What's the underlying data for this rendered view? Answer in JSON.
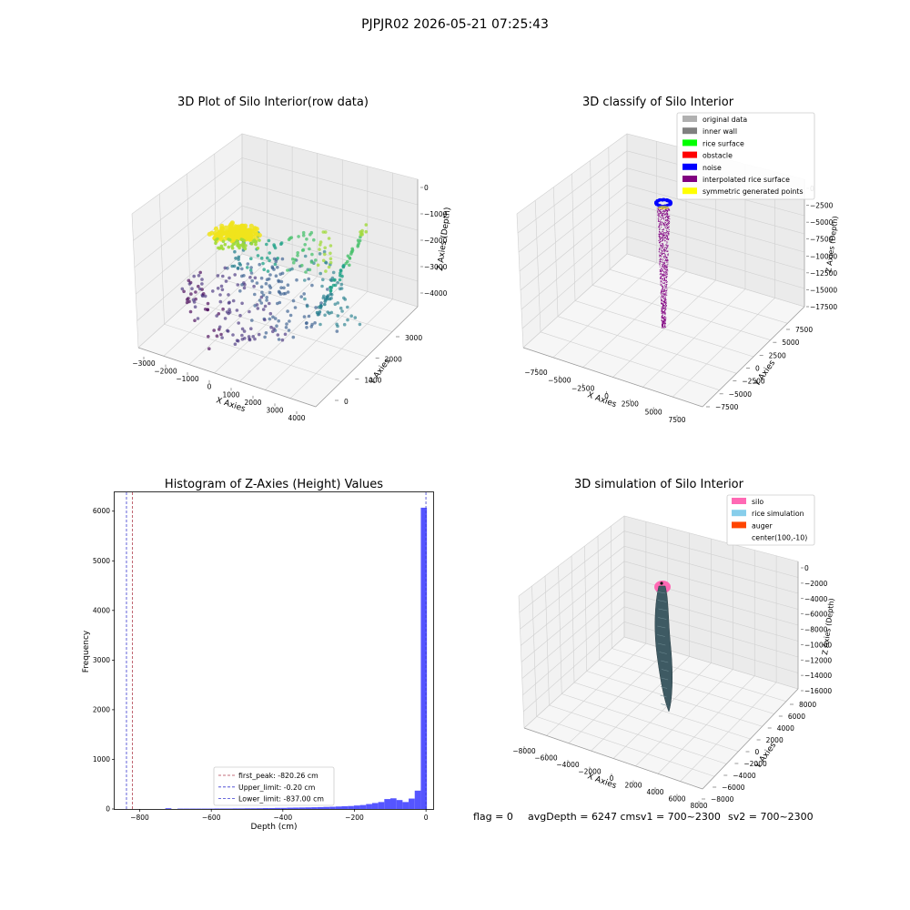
{
  "suptitle": "PJPJR02 2026-05-21 07:25:43",
  "footer": {
    "flag": "flag = 0",
    "avg": "avgDepth = 6247 cmsv1 = 700~2300",
    "sv2": "sv2 = 700~2300"
  },
  "colors": {
    "hist_bar": "#5555ff",
    "first_peak": "#b04050",
    "upper_limit": "#3b3bd0",
    "lower_limit": "#3b3bd0",
    "legend_original": "#b0b0b0",
    "legend_inner_wall": "#808080",
    "legend_rice_surface": "#00ff00",
    "legend_obstacle": "#ff0000",
    "legend_noise": "#0000ff",
    "legend_interp": "#800080",
    "legend_symmetric": "#ffff00",
    "legend_silo": "#ff69b4",
    "legend_rice_sim": "#87ceeb",
    "legend_auger": "#ff4500",
    "rice_sim_body": "#3e5a63"
  },
  "chart_data": [
    {
      "type": "scatter",
      "title": "3D Plot of Silo Interior(row data)",
      "xlabel": "X Axies",
      "ylabel": "Y Axies",
      "zlabel": "Z Axies (Depth)",
      "xticks": [
        "−3000",
        "−2000",
        "−1000",
        "0",
        "1000",
        "2000",
        "3000",
        "4000"
      ],
      "yticks": [
        "0",
        "1000",
        "2000",
        "3000"
      ],
      "zticks": [
        "0",
        "−1000",
        "−2000",
        "−3000",
        "−4000"
      ],
      "grid": true,
      "colormap": "viridis"
    },
    {
      "type": "scatter",
      "title": "3D classify of Silo Interior",
      "xlabel": "X Axies",
      "ylabel": "Y Axies",
      "zlabel": "Z Axies (Depth)",
      "xticks": [
        "−7500",
        "−5000",
        "−2500",
        "0",
        "2500",
        "5000",
        "7500"
      ],
      "yticks": [
        "−7500",
        "−5000",
        "−2500",
        "0",
        "2500",
        "5000",
        "7500"
      ],
      "zticks": [
        "0",
        "−2500",
        "−5000",
        "−7500",
        "−10000",
        "−12500",
        "−15000",
        "−17500"
      ],
      "legend": [
        "original data",
        "inner wall",
        "rice surface",
        "obstacle",
        "noise",
        "interpolated rice surface",
        "symmetric generated points"
      ],
      "legend_position": "top-right",
      "grid": true
    },
    {
      "type": "bar",
      "title": "Histogram of Z-Axies (Height) Values",
      "xlabel": "Depth (cm)",
      "ylabel": "Frequency",
      "xlim": [
        -870,
        20
      ],
      "ylim": [
        0,
        6380
      ],
      "xticks": [
        "−800",
        "−600",
        "−400",
        "−200",
        "0"
      ],
      "yticks": [
        "0",
        "1000",
        "2000",
        "3000",
        "4000",
        "5000",
        "6000"
      ],
      "bin_width": 17,
      "bins": [
        {
          "x": -720,
          "v": 15
        },
        {
          "x": -703,
          "v": 0
        },
        {
          "x": -686,
          "v": 8
        },
        {
          "x": -669,
          "v": 8
        },
        {
          "x": -652,
          "v": 8
        },
        {
          "x": -635,
          "v": 8
        },
        {
          "x": -618,
          "v": 8
        },
        {
          "x": -601,
          "v": 8
        },
        {
          "x": -584,
          "v": 10
        },
        {
          "x": -567,
          "v": 10
        },
        {
          "x": -550,
          "v": 10
        },
        {
          "x": -533,
          "v": 12
        },
        {
          "x": -516,
          "v": 12
        },
        {
          "x": -499,
          "v": 14
        },
        {
          "x": -482,
          "v": 14
        },
        {
          "x": -465,
          "v": 15
        },
        {
          "x": -448,
          "v": 18
        },
        {
          "x": -431,
          "v": 18
        },
        {
          "x": -414,
          "v": 22
        },
        {
          "x": -397,
          "v": 22
        },
        {
          "x": -380,
          "v": 26
        },
        {
          "x": -363,
          "v": 28
        },
        {
          "x": -346,
          "v": 30
        },
        {
          "x": -329,
          "v": 32
        },
        {
          "x": -312,
          "v": 35
        },
        {
          "x": -295,
          "v": 38
        },
        {
          "x": -278,
          "v": 42
        },
        {
          "x": -261,
          "v": 45
        },
        {
          "x": -244,
          "v": 50
        },
        {
          "x": -227,
          "v": 55
        },
        {
          "x": -210,
          "v": 60
        },
        {
          "x": -193,
          "v": 70
        },
        {
          "x": -176,
          "v": 80
        },
        {
          "x": -159,
          "v": 100
        },
        {
          "x": -142,
          "v": 120
        },
        {
          "x": -125,
          "v": 140
        },
        {
          "x": -108,
          "v": 200
        },
        {
          "x": -91,
          "v": 215
        },
        {
          "x": -74,
          "v": 180
        },
        {
          "x": -57,
          "v": 140
        },
        {
          "x": -40,
          "v": 210
        },
        {
          "x": -23,
          "v": 370
        },
        {
          "x": -6,
          "v": 6070
        }
      ],
      "lines": [
        {
          "name": "first_peak: -820.26 cm",
          "x": -820.26,
          "color_key": "first_peak"
        },
        {
          "name": "Upper_limit: -0.20 cm",
          "x": -0.2,
          "color_key": "upper_limit"
        },
        {
          "name": "Lower_limit: -837.00 cm",
          "x": -837.0,
          "color_key": "lower_limit"
        }
      ],
      "legend_position": "lower center",
      "grid": false
    },
    {
      "type": "surface",
      "title": "3D simulation of Silo Interior",
      "xlabel": "X Axies",
      "ylabel": "Y Axies",
      "zlabel": "Z Axies (Depth)",
      "xticks": [
        "−8000",
        "−6000",
        "−4000",
        "−2000",
        "0",
        "2000",
        "4000",
        "6000",
        "8000"
      ],
      "yticks": [
        "−8000",
        "−6000",
        "−4000",
        "−2000",
        "0",
        "2000",
        "4000",
        "6000",
        "8000"
      ],
      "zticks": [
        "0",
        "−2000",
        "−4000",
        "−6000",
        "−8000",
        "−10000",
        "−12000",
        "−14000",
        "−16000"
      ],
      "legend": [
        "silo",
        "rice simulation",
        "auger",
        "center(100,-10)"
      ],
      "legend_position": "top-right",
      "grid": true
    }
  ]
}
